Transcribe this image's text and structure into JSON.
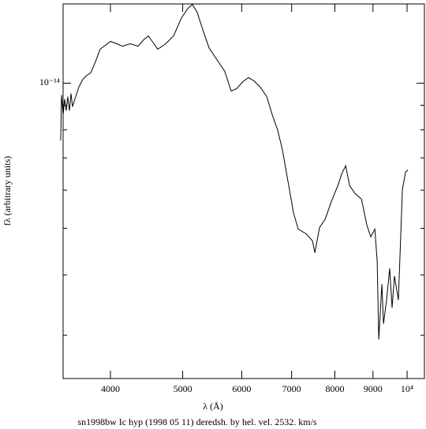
{
  "chart_data": {
    "type": "line",
    "xlabel": "λ (Å)",
    "ylabel": "fλ (arbitrary units)",
    "caption": "sn1998bw Ic hyp (1998 05 11) deredsh. by hel. vel.  2532. km/s",
    "xscale": "log",
    "yscale": "log",
    "color": "#000000",
    "xlim": [
      3456,
      10550
    ],
    "ylim": [
      2.44e-15,
      1.46e-14
    ],
    "xticks": [
      4000,
      5000,
      6000,
      7000,
      8000,
      9000,
      {
        "value": 10000,
        "label": "10⁴"
      }
    ],
    "yticks": [
      {
        "value": 1e-14,
        "label": "10⁻¹⁴"
      }
    ],
    "yminorticks": [
      3e-15,
      4e-15,
      5e-15,
      6e-15,
      7e-15,
      8e-15,
      9e-15
    ],
    "x": [
      3430,
      3439,
      3456,
      3473,
      3489,
      3506,
      3524,
      3541,
      3558,
      3584,
      3628,
      3673,
      3717,
      3763,
      3791,
      3828,
      3874,
      3922,
      4000,
      4079,
      4149,
      4251,
      4356,
      4431,
      4497,
      4552,
      4630,
      4745,
      4861,
      4981,
      5080,
      5152,
      5229,
      5332,
      5424,
      5557,
      5694,
      5807,
      5906,
      6023,
      6127,
      6232,
      6356,
      6482,
      6593,
      6707,
      6806,
      6923,
      7042,
      7146,
      7322,
      7466,
      7521,
      7632,
      7763,
      7917,
      8073,
      8172,
      8272,
      8374,
      8518,
      8685,
      8831,
      8940,
      9050,
      9117,
      9161,
      9251,
      9297,
      9386,
      9478,
      9548,
      9618,
      9736,
      9856,
      9952,
      10025
    ],
    "values": [
      7.6e-15,
      9.45e-15,
      8.6e-15,
      9.27e-15,
      8.77e-15,
      9.38e-15,
      8.77e-15,
      9.52e-15,
      8.93e-15,
      9.27e-15,
      9.81e-15,
      1.019e-14,
      1.038e-14,
      1.05e-14,
      1.078e-14,
      1.119e-14,
      1.176e-14,
      1.193e-14,
      1.221e-14,
      1.207e-14,
      1.193e-14,
      1.207e-14,
      1.193e-14,
      1.23e-14,
      1.253e-14,
      1.221e-14,
      1.176e-14,
      1.207e-14,
      1.253e-14,
      1.366e-14,
      1.429e-14,
      1.457e-14,
      1.403e-14,
      1.277e-14,
      1.184e-14,
      1.119e-14,
      1.058e-14,
      9.63e-15,
      9.74e-15,
      1.008e-14,
      1.027e-14,
      1.011e-14,
      9.81e-15,
      9.38e-15,
      8.6e-15,
      7.98e-15,
      7.26e-15,
      6.25e-15,
      5.38e-15,
      4.98e-15,
      4.87e-15,
      4.71e-15,
      4.45e-15,
      5.02e-15,
      5.22e-15,
      5.69e-15,
      6.13e-15,
      6.49e-15,
      6.74e-15,
      6.13e-15,
      5.9e-15,
      5.75e-15,
      5.08e-15,
      4.8e-15,
      4.98e-15,
      4.29e-15,
      2.94e-15,
      3.83e-15,
      3.17e-15,
      3.55e-15,
      4.13e-15,
      3.42e-15,
      3.98e-15,
      3.55e-15,
      6.02e-15,
      6.54e-15,
      6.61e-15
    ]
  }
}
